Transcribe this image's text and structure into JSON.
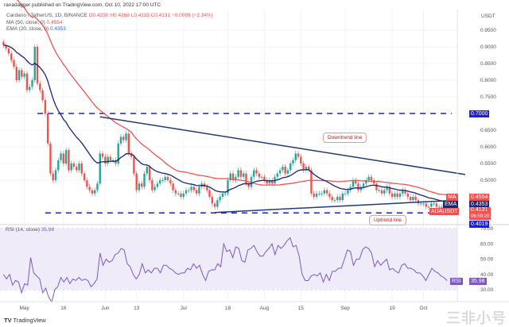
{
  "header": {
    "publisher": "ranadagger published on TradingView.com, Oct 10, 2022 17:00 UTC",
    "symbol": "Cardano / TetherUS, 1D, BINANCE",
    "open": "O0.4230",
    "high": "H0.4268",
    "low": "L0.4115",
    "close": "C0.4131",
    "change": "−0.0099 (−2.34%)",
    "ma_label": "MA (50, close, 0)",
    "ma_value": "0.4554",
    "ema_label": "EMA (20, close, 0)",
    "ema_value": "0.4353",
    "rsi_label": "RSI (14, close)",
    "rsi_value": "35.98"
  },
  "price_axis": {
    "currency": "USDT",
    "ticks": [
      "0.9500",
      "0.9000",
      "0.8500",
      "0.8000",
      "0.7500",
      "0.7000",
      "0.6500",
      "0.6000",
      "0.5500",
      "0.5000"
    ]
  },
  "rsi_axis": {
    "ticks": [
      "70.00",
      "60.00",
      "50.00",
      "40.00",
      "30.00"
    ]
  },
  "tags": {
    "ma": {
      "label": "MA",
      "value": "0.4554"
    },
    "ema": {
      "label": "EMA",
      "value": "0.4353"
    },
    "last": {
      "label": "ADAUSDT",
      "value": "0.4131",
      "countdown": "06:59:20"
    },
    "support": "0.4019",
    "resistance": "0.7000",
    "rsi": {
      "label": "RSI",
      "value": "35.98"
    }
  },
  "annotations": {
    "downtrend": "Downtrend line",
    "uptrend": "Uptrend line"
  },
  "branding": {
    "logo": "TradingView",
    "watermark": "三非小号"
  },
  "colors": {
    "up": "#26a69a",
    "down": "#ef5350",
    "ma": "#ef5350",
    "ema": "#1a237e",
    "trend": "#1f3a78",
    "level": "#1e22c8",
    "rsi": "#7e57c2",
    "rsi_band": "#efebf9"
  },
  "chart_data": {
    "type": "candlestick",
    "interval": "1D",
    "last_date": "2022-10-10",
    "date_labels": [
      {
        "label": "May",
        "date": "2022-05-01"
      },
      {
        "label": "16",
        "date": "2022-05-16"
      },
      {
        "label": "Jun",
        "date": "2022-06-01"
      },
      {
        "label": "13",
        "date": "2022-06-13"
      },
      {
        "label": "Jul",
        "date": "2022-07-01"
      },
      {
        "label": "18",
        "date": "2022-07-18"
      },
      {
        "label": "Aug",
        "date": "2022-08-01"
      },
      {
        "label": "15",
        "date": "2022-08-15"
      },
      {
        "label": "Sep",
        "date": "2022-09-01"
      },
      {
        "label": "19",
        "date": "2022-09-19"
      },
      {
        "label": "Oct",
        "date": "2022-10-01"
      }
    ],
    "ylim": [
      0.38,
      0.99
    ],
    "closes": [
      0.905,
      0.895,
      0.88,
      0.86,
      0.84,
      0.8,
      0.83,
      0.81,
      0.82,
      0.77,
      0.78,
      0.8,
      0.9,
      0.79,
      0.77,
      0.74,
      0.7,
      0.61,
      0.52,
      0.5,
      0.53,
      0.56,
      0.58,
      0.55,
      0.59,
      0.53,
      0.55,
      0.54,
      0.53,
      0.55,
      0.52,
      0.5,
      0.48,
      0.47,
      0.46,
      0.47,
      0.49,
      0.58,
      0.57,
      0.55,
      0.57,
      0.56,
      0.56,
      0.55,
      0.61,
      0.63,
      0.62,
      0.64,
      0.58,
      0.57,
      0.52,
      0.47,
      0.49,
      0.48,
      0.52,
      0.54,
      0.5,
      0.47,
      0.48,
      0.49,
      0.5,
      0.5,
      0.51,
      0.5,
      0.49,
      0.47,
      0.46,
      0.46,
      0.45,
      0.46,
      0.47,
      0.47,
      0.48,
      0.47,
      0.46,
      0.48,
      0.49,
      0.48,
      0.47,
      0.45,
      0.43,
      0.42,
      0.44,
      0.45,
      0.46,
      0.46,
      0.5,
      0.52,
      0.5,
      0.51,
      0.53,
      0.51,
      0.52,
      0.49,
      0.48,
      0.51,
      0.53,
      0.52,
      0.51,
      0.51,
      0.5,
      0.49,
      0.5,
      0.49,
      0.51,
      0.52,
      0.53,
      0.54,
      0.52,
      0.53,
      0.55,
      0.56,
      0.58,
      0.57,
      0.55,
      0.53,
      0.54,
      0.53,
      0.46,
      0.45,
      0.46,
      0.46,
      0.46,
      0.47,
      0.46,
      0.45,
      0.44,
      0.44,
      0.45,
      0.44,
      0.46,
      0.46,
      0.47,
      0.48,
      0.5,
      0.49,
      0.47,
      0.48,
      0.49,
      0.5,
      0.51,
      0.5,
      0.49,
      0.47,
      0.47,
      0.46,
      0.47,
      0.48,
      0.46,
      0.45,
      0.46,
      0.45,
      0.46,
      0.47,
      0.46,
      0.45,
      0.44,
      0.45,
      0.44,
      0.43,
      0.43,
      0.43,
      0.42,
      0.42,
      0.43,
      0.43,
      0.42,
      0.42,
      0.42,
      0.423,
      0.4131
    ],
    "levels": [
      {
        "price": 0.7,
        "from": "2022-05-06"
      },
      {
        "price": 0.4019,
        "from": "2022-05-09"
      }
    ],
    "trendlines": [
      {
        "name": "downtrend",
        "from": [
          "2022-05-30",
          0.69
        ],
        "to": [
          "2022-10-17",
          0.517
        ]
      },
      {
        "name": "uptrend",
        "from": [
          "2022-07-13",
          0.403
        ],
        "to": [
          "2022-10-14",
          0.44
        ]
      }
    ],
    "rsi": {
      "period": 14,
      "ylim": [
        20,
        75
      ],
      "bands": [
        70,
        50,
        30
      ],
      "values": [
        40,
        37,
        40,
        33,
        36,
        35,
        28,
        34,
        33,
        51,
        41,
        39,
        37,
        28,
        31,
        25,
        22,
        30,
        32,
        38,
        35,
        38,
        34,
        37,
        36,
        38,
        36,
        37,
        36,
        32,
        34,
        37,
        54,
        46,
        50,
        48,
        49,
        53,
        54,
        57,
        56,
        47,
        45,
        40,
        37,
        40,
        47,
        41,
        43,
        41,
        44,
        44,
        41,
        46,
        46,
        44,
        43,
        41,
        40,
        41,
        41,
        44,
        43,
        47,
        44,
        46,
        40,
        36,
        42,
        43,
        43,
        47,
        45,
        60,
        55,
        56,
        51,
        58,
        57,
        49,
        48,
        56,
        57,
        59,
        55,
        52,
        52,
        55,
        57,
        60,
        53,
        59,
        57,
        59,
        62,
        64,
        58,
        59,
        52,
        40,
        36,
        36,
        39,
        40,
        39,
        41,
        35,
        40,
        36,
        42,
        42,
        44,
        44,
        50,
        56,
        55,
        46,
        50,
        50,
        56,
        58,
        57,
        54,
        45,
        49,
        46,
        48,
        50,
        43,
        44,
        42,
        41,
        46,
        47,
        44,
        44,
        43,
        41,
        41,
        39,
        36,
        40,
        44,
        42,
        41,
        39,
        38,
        35.98
      ]
    }
  }
}
